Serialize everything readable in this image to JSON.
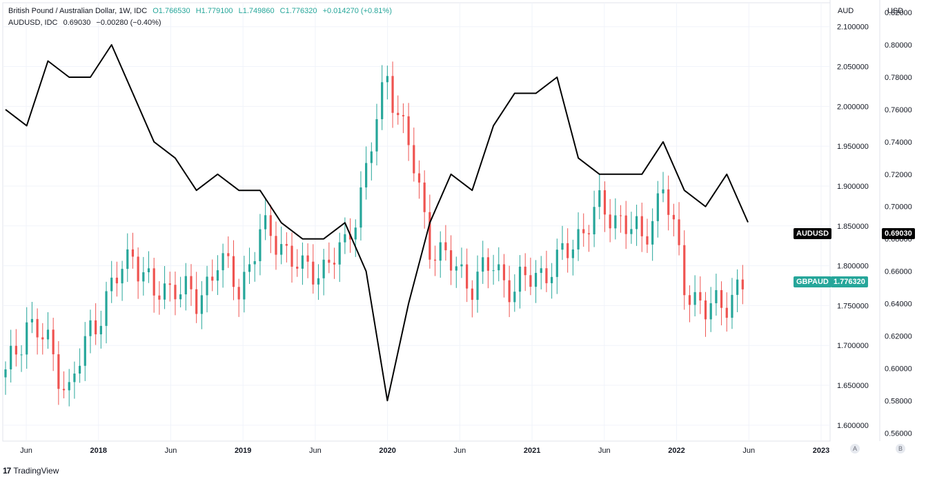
{
  "header": {
    "line1": {
      "symbol": "British Pound / Australian Dollar, 1W, IDC",
      "open": "O1.766530",
      "high": "H1.779100",
      "low": "L1.749860",
      "close": "C1.776320",
      "change": "+0.014270 (+0.81%)"
    },
    "line2": {
      "symbol": "AUDUSD, IDC",
      "value": "0.69030",
      "change": "−0.00280 (−0.40%)"
    }
  },
  "axes": {
    "left_title": "AUD",
    "right_title": "USD",
    "aud_ticks": [
      "2.100000",
      "2.050000",
      "2.000000",
      "1.950000",
      "1.900000",
      "1.850000",
      "1.800000",
      "1.750000",
      "1.700000",
      "1.650000",
      "1.600000"
    ],
    "usd_ticks": [
      "0.82000",
      "0.80000",
      "0.78000",
      "0.76000",
      "0.74000",
      "0.72000",
      "0.70000",
      "0.68000",
      "0.66000",
      "0.64000",
      "0.62000",
      "0.60000",
      "0.58000",
      "0.56000"
    ],
    "time_ticks": [
      "Jun",
      "2018",
      "Jun",
      "2019",
      "Jun",
      "2020",
      "Jun",
      "2021",
      "Jun",
      "2022",
      "Jun",
      "2023"
    ]
  },
  "tags": {
    "audusd_label": "AUDUSD",
    "audusd_value": "0.69030",
    "gbpaud_label": "GBPAUD",
    "gbpaud_value": "1.776320"
  },
  "buttons": {
    "a": "A",
    "b": "B"
  },
  "footer": {
    "brand": "TradingView",
    "logo": "17"
  },
  "colors": {
    "up": "#26a69a",
    "down": "#ef5350",
    "line": "#000000",
    "grid": "#f0f3fa"
  },
  "chart_data": {
    "type": "line",
    "title": "British Pound / Australian Dollar, 1W, IDC with AUDUSD overlay",
    "x": [
      "2017-04",
      "2017-06",
      "2017-08",
      "2017-10",
      "2017-12",
      "2018-02",
      "2018-04",
      "2018-06",
      "2018-08",
      "2018-10",
      "2018-12",
      "2019-02",
      "2019-04",
      "2019-06",
      "2019-08",
      "2019-10",
      "2019-12",
      "2020-02",
      "2020-03",
      "2020-04",
      "2020-06",
      "2020-08",
      "2020-10",
      "2020-12",
      "2021-02",
      "2021-04",
      "2021-06",
      "2021-08",
      "2021-10",
      "2021-12",
      "2022-02",
      "2022-03",
      "2022-04",
      "2022-05",
      "2022-06",
      "2022-06-24"
    ],
    "series": [
      {
        "name": "GBPAUD",
        "axis": "AUD",
        "style": "candles",
        "values": [
          1.66,
          1.73,
          1.7,
          1.64,
          1.72,
          1.77,
          1.82,
          1.76,
          1.78,
          1.75,
          1.81,
          1.77,
          1.84,
          1.83,
          1.79,
          1.8,
          1.82,
          1.92,
          2.04,
          1.95,
          1.83,
          1.8,
          1.78,
          1.8,
          1.77,
          1.79,
          1.8,
          1.84,
          1.87,
          1.86,
          1.83,
          1.9,
          1.78,
          1.74,
          1.76,
          1.776
        ]
      },
      {
        "name": "AUDUSD",
        "axis": "USD",
        "style": "line",
        "values": [
          0.76,
          0.75,
          0.79,
          0.78,
          0.78,
          0.8,
          0.77,
          0.74,
          0.73,
          0.71,
          0.72,
          0.71,
          0.71,
          0.69,
          0.68,
          0.68,
          0.69,
          0.66,
          0.58,
          0.64,
          0.69,
          0.72,
          0.71,
          0.75,
          0.77,
          0.77,
          0.78,
          0.73,
          0.72,
          0.72,
          0.72,
          0.74,
          0.71,
          0.7,
          0.72,
          0.6903
        ]
      }
    ],
    "ylim_aud": [
      1.58,
      2.13
    ],
    "ylim_usd": [
      0.555,
      0.826
    ],
    "grid": true,
    "legend": "top-left"
  }
}
